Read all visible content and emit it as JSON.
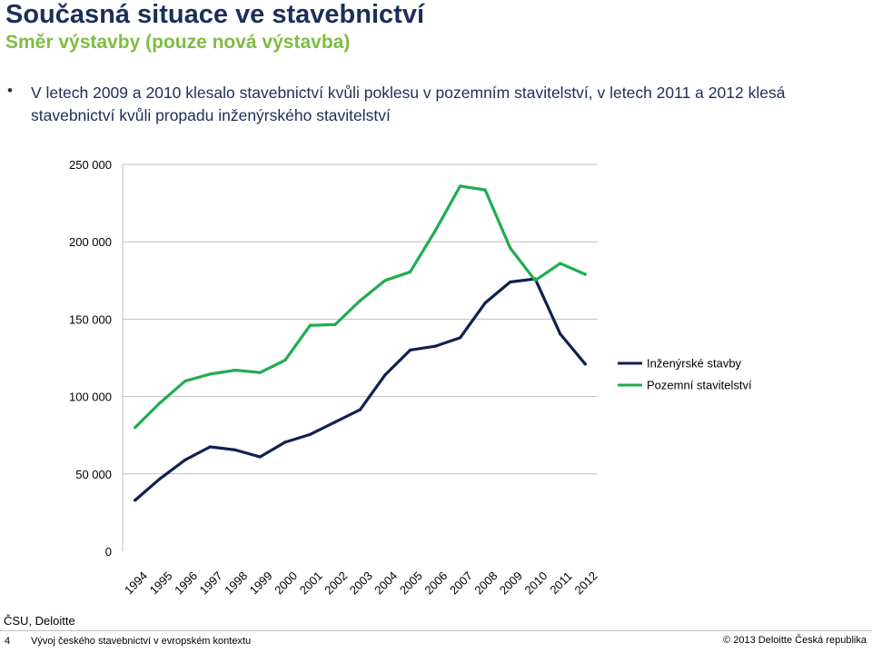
{
  "header": {
    "title": "Současná situace ve stavebnictví",
    "subtitle": "Směr výstavby (pouze nová výstavba)"
  },
  "bullet": {
    "symbol": "•",
    "text": "V letech 2009 a 2010 klesalo stavebnictví kvůli poklesu v pozemním stavitelství, v letech 2011 a 2012 klesá stavebnictví kvůli propadu inženýrského stavitelství"
  },
  "chart_data": {
    "type": "line",
    "categories": [
      "1994",
      "1995",
      "1996",
      "1997",
      "1998",
      "1999",
      "2000",
      "2001",
      "2002",
      "2003",
      "2004",
      "2005",
      "2006",
      "2007",
      "2008",
      "2009",
      "2010",
      "2011",
      "2012"
    ],
    "y_tick_labels": [
      "0",
      "50 000",
      "100 000",
      "150 000",
      "200 000",
      "250 000"
    ],
    "ylim": [
      0,
      250000
    ],
    "y_tick_step": 50000,
    "grid": "horizontal",
    "legend_position": "right",
    "title": "",
    "xlabel": "",
    "ylabel": "",
    "series": [
      {
        "name": "Inženýrské stavby",
        "color": "#0f2150",
        "values": [
          33000,
          47000,
          59000,
          67500,
          65500,
          61000,
          70500,
          75500,
          83500,
          91500,
          114000,
          130000,
          132500,
          138000,
          160500,
          174000,
          176000,
          140500,
          121000
        ]
      },
      {
        "name": "Pozemní stavitelství",
        "color": "#1fad4f",
        "values": [
          80000,
          96000,
          110000,
          114500,
          117000,
          115500,
          123500,
          146000,
          146500,
          162000,
          175000,
          180500,
          207000,
          236000,
          233500,
          196000,
          175000,
          186000,
          179000
        ]
      }
    ]
  },
  "source": "ČSU, Deloitte",
  "footer": {
    "page_number": "4",
    "left_text": "Vývoj českého stavebnictví v evropském kontextu",
    "right_text": "© 2013 Deloitte Česká republika"
  }
}
